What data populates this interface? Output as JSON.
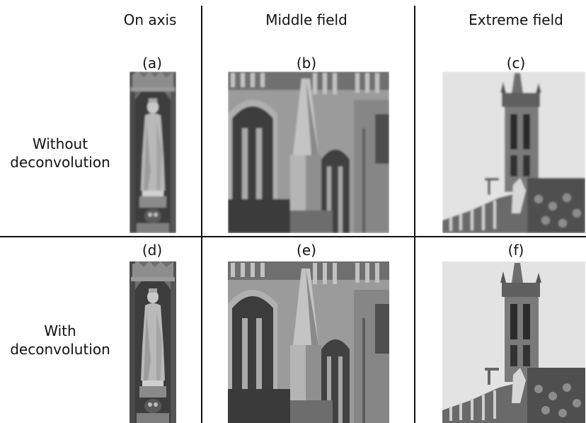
{
  "columns": {
    "on_axis": "On axis",
    "middle_field": "Middle field",
    "extreme_field": "Extreme field"
  },
  "rows": {
    "without": {
      "line1": "Without",
      "line2": "deconvolution"
    },
    "with": {
      "line1": "With",
      "line2": "deconvolution"
    }
  },
  "panels": {
    "a": "(a)",
    "b": "(b)",
    "c": "(c)",
    "d": "(d)",
    "e": "(e)",
    "f": "(f)"
  },
  "panel_content": {
    "a": "statue-niche-photo",
    "b": "gothic-facade-photo",
    "c": "tower-photo",
    "d": "statue-niche-photo-sharp",
    "e": "gothic-facade-photo-sharp",
    "f": "tower-photo-sharp"
  },
  "colors": {
    "line": "#111111",
    "background": "#ffffff"
  }
}
